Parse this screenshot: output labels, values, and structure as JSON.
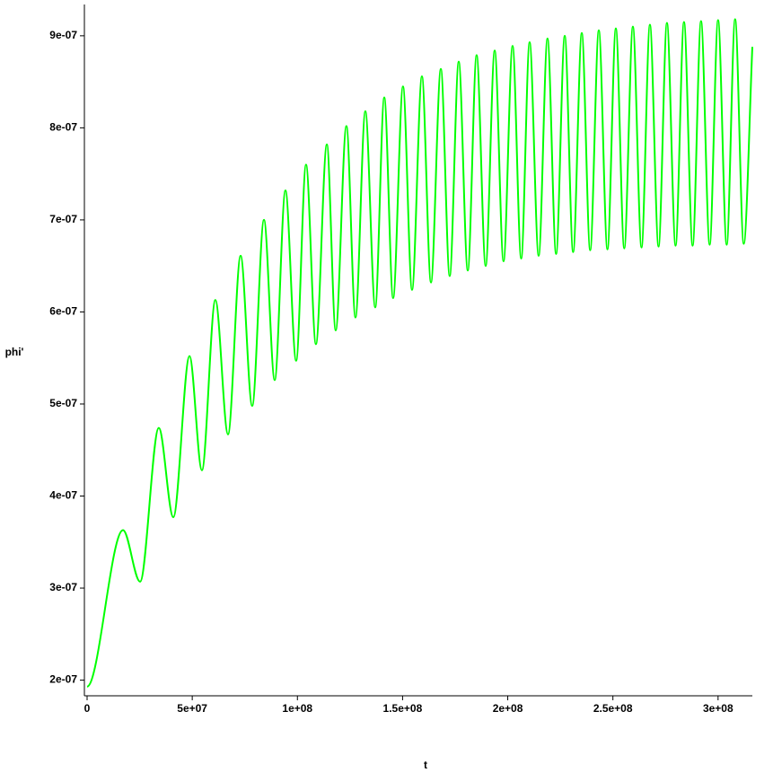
{
  "chart_data": {
    "type": "line",
    "xlabel": "t",
    "ylabel": "phi'",
    "color": "#00ff00",
    "x": [
      0,
      17100000,
      25200000,
      34100000,
      41000000,
      48700000,
      54600000,
      61000000,
      67000000,
      73000000,
      78500000,
      84100000,
      89200000,
      94300000,
      99400000,
      104100000,
      108800000,
      114000000,
      118200000,
      123300000,
      127600000,
      132300000,
      137000000,
      141300000,
      145500000,
      150200000,
      154500000,
      159200000,
      163500000,
      168200000,
      172400000,
      176700000,
      181000000,
      185200000,
      189500000,
      193800000,
      198000000,
      202300000,
      206400000,
      210400000,
      214700000,
      218900000,
      223000000,
      227100000,
      231100000,
      235200000,
      239200000,
      243300000,
      247400000,
      251400000,
      255400000,
      259500000,
      263600000,
      267600000,
      271700000,
      275700000,
      279800000,
      283800000,
      287900000,
      291900000,
      296000000,
      300000000,
      304100000,
      308100000,
      312200000,
      316300000
    ],
    "values": [
      1.93e-07,
      3.63e-07,
      3.07e-07,
      4.74e-07,
      3.77e-07,
      5.52e-07,
      4.28e-07,
      6.13e-07,
      4.67e-07,
      6.61e-07,
      4.98e-07,
      7e-07,
      5.26e-07,
      7.32e-07,
      5.47e-07,
      7.6e-07,
      5.65e-07,
      7.82e-07,
      5.8e-07,
      8.02e-07,
      5.94e-07,
      8.18e-07,
      6.05e-07,
      8.33e-07,
      6.15e-07,
      8.45e-07,
      6.24e-07,
      8.56e-07,
      6.32e-07,
      8.64e-07,
      6.39e-07,
      8.72e-07,
      6.45e-07,
      8.79e-07,
      6.5e-07,
      8.84e-07,
      6.55e-07,
      8.89e-07,
      6.58e-07,
      8.93e-07,
      6.61e-07,
      8.97e-07,
      6.63e-07,
      9e-07,
      6.65e-07,
      9.03e-07,
      6.67e-07,
      9.06e-07,
      6.68e-07,
      9.08e-07,
      6.69e-07,
      9.1e-07,
      6.7e-07,
      9.12e-07,
      6.71e-07,
      9.14e-07,
      6.72e-07,
      9.15e-07,
      6.72e-07,
      9.16e-07,
      6.73e-07,
      9.17e-07,
      6.73e-07,
      9.18e-07,
      6.74e-07,
      8.88e-07
    ],
    "xlim": [
      0,
      316300000
    ],
    "ylim": [
      1.83e-07,
      9.34e-07
    ],
    "xticks": [
      0,
      {
        "value": 50000000,
        "label": "5e+07"
      },
      {
        "value": 100000000,
        "label": "1e+08"
      },
      {
        "value": 150000000,
        "label": "1.5e+08"
      },
      {
        "value": 200000000,
        "label": "2e+08"
      },
      {
        "value": 250000000,
        "label": "2.5e+08"
      },
      {
        "value": 300000000,
        "label": "3e+08"
      }
    ],
    "yticks": [
      {
        "value": 2e-07,
        "label": "2e-07"
      },
      {
        "value": 3e-07,
        "label": "3e-07"
      },
      {
        "value": 4e-07,
        "label": "4e-07"
      },
      {
        "value": 5e-07,
        "label": "5e-07"
      },
      {
        "value": 6e-07,
        "label": "6e-07"
      },
      {
        "value": 7e-07,
        "label": "7e-07"
      },
      {
        "value": 8e-07,
        "label": "8e-07"
      },
      {
        "value": 9e-07,
        "label": "9e-07"
      }
    ]
  }
}
